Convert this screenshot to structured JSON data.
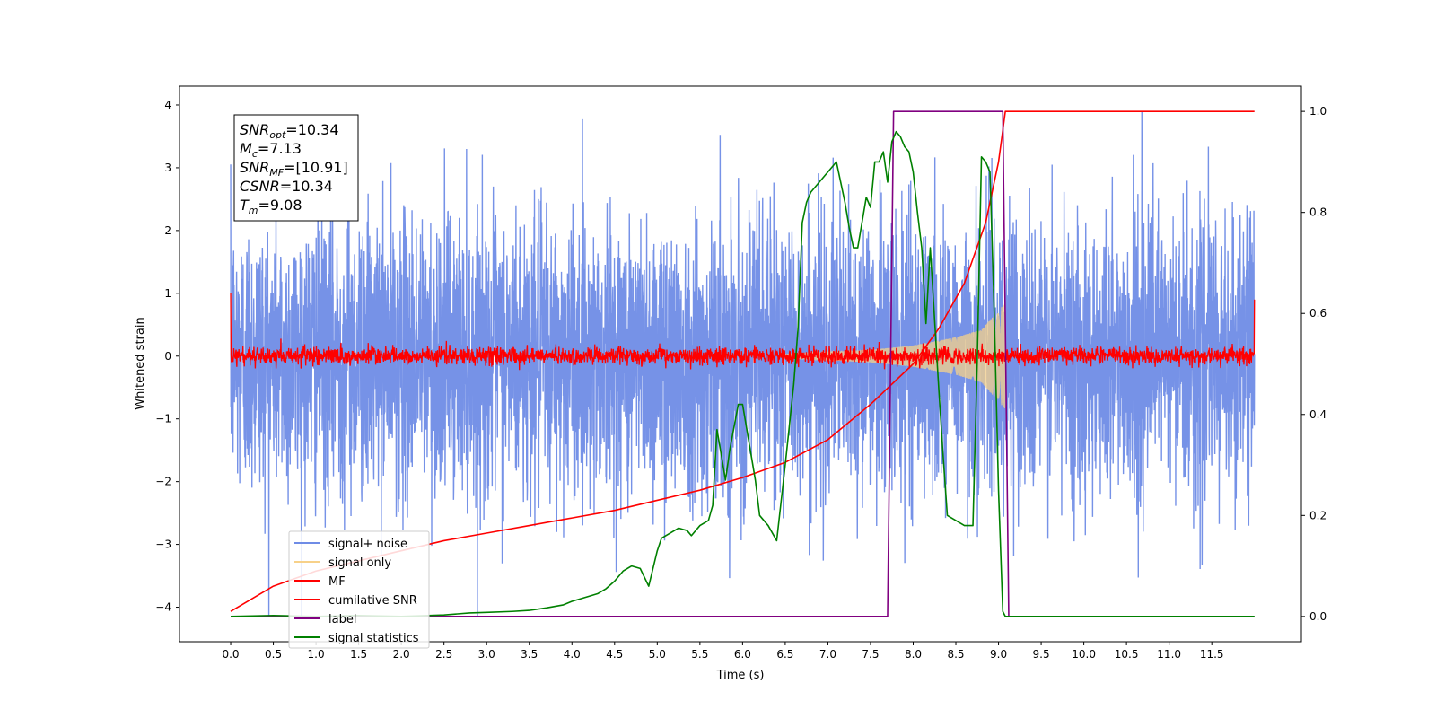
{
  "chart_data": {
    "type": "line",
    "xlabel": "Time (s)",
    "ylabel": "Whitened strain",
    "xlim": [
      -0.6,
      12.55
    ],
    "ylim_left": [
      -4.55,
      4.3
    ],
    "ylim_right": [
      -0.05,
      1.05
    ],
    "x_ticks": [
      0.0,
      0.5,
      1.0,
      1.5,
      2.0,
      2.5,
      3.0,
      3.5,
      4.0,
      4.5,
      5.0,
      5.5,
      6.0,
      6.5,
      7.0,
      7.5,
      8.0,
      8.5,
      9.0,
      9.5,
      10.0,
      10.5,
      11.0,
      11.5
    ],
    "x_tick_labels": [
      "0.0",
      "0.5",
      "1.0",
      "1.5",
      "2.0",
      "2.5",
      "3.0",
      "3.5",
      "4.0",
      "4.5",
      "5.0",
      "5.5",
      "6.0",
      "6.5",
      "7.0",
      "7.5",
      "8.0",
      "8.5",
      "9.0",
      "9.5",
      "10.0",
      "10.5",
      "11.0",
      "11.5"
    ],
    "y_ticks_left": [
      4,
      3,
      2,
      1,
      0,
      -1,
      -2,
      -3,
      -4
    ],
    "y_tick_labels_left": [
      "4",
      "3",
      "2",
      "1",
      "0",
      "−1",
      "−2",
      "−3",
      "−4"
    ],
    "y_ticks_right": [
      1.0,
      0.8,
      0.6,
      0.4,
      0.2,
      0.0
    ],
    "y_tick_labels_right": [
      "1.0",
      "0.8",
      "0.6",
      "0.4",
      "0.2",
      "0.0"
    ],
    "grid": false,
    "legend_position": "lower-left",
    "series": [
      {
        "name": "signal+ noise",
        "axis": "left",
        "color": "#6f8ce6",
        "kind": "noise",
        "x_range": [
          0.0,
          12.0
        ],
        "std": 1.1,
        "min": -4.15,
        "max": 3.9
      },
      {
        "name": "signal only",
        "axis": "left",
        "color": "#f7d189",
        "kind": "chirp",
        "x_range": [
          6.5,
          9.08
        ],
        "envelope": {
          "x": [
            6.5,
            7.5,
            8.0,
            8.5,
            8.8,
            9.08
          ],
          "amp": [
            0.03,
            0.1,
            0.17,
            0.3,
            0.42,
            0.85
          ]
        }
      },
      {
        "name": "MF",
        "axis": "left",
        "color": "#ff0000",
        "kind": "noise",
        "x_range": [
          0.0,
          12.0
        ],
        "std": 0.07,
        "edge_values": {
          "start": 1.0,
          "end": 0.9
        }
      },
      {
        "name": "cumilative SNR",
        "axis": "right",
        "color": "#ff0000",
        "kind": "line",
        "x": [
          0.0,
          0.5,
          1.0,
          1.5,
          2.0,
          2.5,
          3.0,
          3.5,
          4.0,
          4.5,
          5.0,
          5.5,
          6.0,
          6.5,
          7.0,
          7.5,
          8.0,
          8.3,
          8.6,
          8.85,
          9.0,
          9.08,
          12.0
        ],
        "y": [
          0.01,
          0.06,
          0.09,
          0.11,
          0.13,
          0.15,
          0.165,
          0.18,
          0.195,
          0.21,
          0.23,
          0.25,
          0.275,
          0.305,
          0.35,
          0.42,
          0.5,
          0.57,
          0.66,
          0.78,
          0.9,
          1.0,
          1.0
        ]
      },
      {
        "name": "label",
        "axis": "right",
        "color": "#800080",
        "kind": "line",
        "x": [
          0.0,
          7.7,
          7.77,
          9.05,
          9.12,
          12.0
        ],
        "y": [
          0.0,
          0.0,
          1.0,
          1.0,
          0.0,
          0.0
        ]
      },
      {
        "name": "signal statistics",
        "axis": "right",
        "color": "#008000",
        "kind": "line",
        "x": [
          0.0,
          0.5,
          1.0,
          1.5,
          2.0,
          2.5,
          2.8,
          3.0,
          3.3,
          3.5,
          3.7,
          3.9,
          4.0,
          4.2,
          4.3,
          4.4,
          4.5,
          4.6,
          4.7,
          4.8,
          4.9,
          5.0,
          5.05,
          5.15,
          5.25,
          5.35,
          5.4,
          5.5,
          5.6,
          5.65,
          5.7,
          5.75,
          5.8,
          5.85,
          5.95,
          6.0,
          6.1,
          6.15,
          6.2,
          6.3,
          6.4,
          6.5,
          6.6,
          6.65,
          6.7,
          6.75,
          6.8,
          6.9,
          7.0,
          7.1,
          7.2,
          7.25,
          7.3,
          7.35,
          7.4,
          7.45,
          7.5,
          7.55,
          7.6,
          7.65,
          7.7,
          7.75,
          7.8,
          7.85,
          7.9,
          7.95,
          8.0,
          8.05,
          8.1,
          8.15,
          8.2,
          8.3,
          8.35,
          8.4,
          8.5,
          8.6,
          8.7,
          8.75,
          8.8,
          8.85,
          8.9,
          8.95,
          9.0,
          9.05,
          9.08,
          9.15,
          9.3,
          12.0
        ],
        "y": [
          0.0,
          0.002,
          0.0,
          0.002,
          0.0,
          0.003,
          0.007,
          0.008,
          0.01,
          0.012,
          0.017,
          0.023,
          0.03,
          0.04,
          0.045,
          0.055,
          0.07,
          0.09,
          0.1,
          0.095,
          0.06,
          0.13,
          0.155,
          0.165,
          0.175,
          0.17,
          0.16,
          0.18,
          0.19,
          0.22,
          0.37,
          0.32,
          0.27,
          0.33,
          0.42,
          0.42,
          0.32,
          0.27,
          0.2,
          0.18,
          0.15,
          0.3,
          0.46,
          0.57,
          0.78,
          0.82,
          0.84,
          0.86,
          0.88,
          0.9,
          0.82,
          0.77,
          0.73,
          0.73,
          0.78,
          0.83,
          0.81,
          0.9,
          0.9,
          0.92,
          0.86,
          0.94,
          0.96,
          0.95,
          0.93,
          0.92,
          0.88,
          0.8,
          0.73,
          0.58,
          0.73,
          0.45,
          0.32,
          0.2,
          0.19,
          0.18,
          0.18,
          0.5,
          0.91,
          0.9,
          0.88,
          0.6,
          0.25,
          0.01,
          0.0,
          0.0,
          0.0,
          0.0
        ]
      }
    ],
    "annotation_lines": [
      {
        "main": "SNR",
        "sub": "opt",
        "value": "=10.34"
      },
      {
        "main": "M",
        "sub": "c",
        "value": "=7.13"
      },
      {
        "main": "SNR",
        "sub": "MF",
        "value": "=[10.91]"
      },
      {
        "main": "CSNR",
        "sub": "",
        "value": "=10.34"
      },
      {
        "main": "T",
        "sub": "m",
        "value": "=9.08"
      }
    ]
  }
}
